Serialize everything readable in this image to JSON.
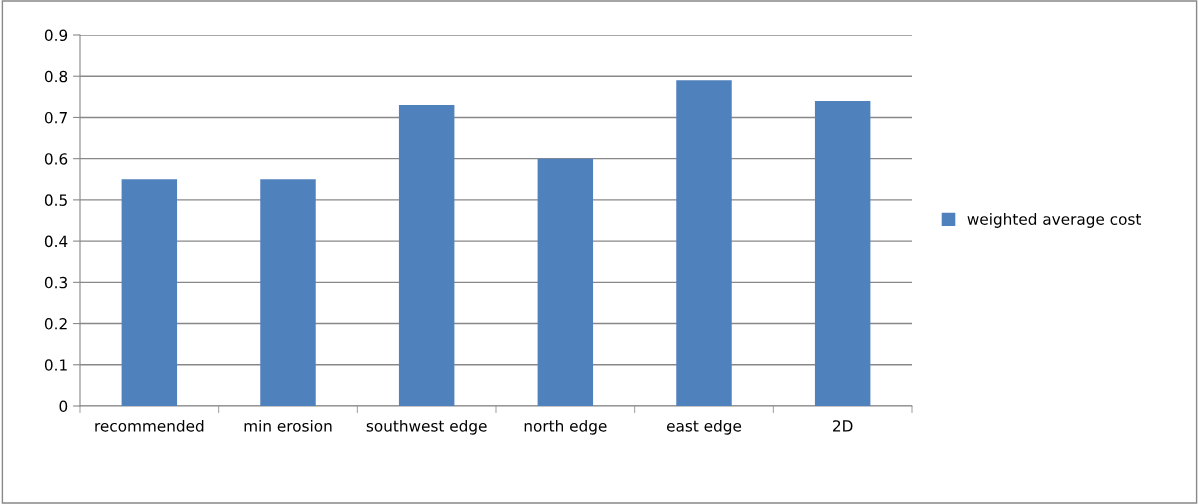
{
  "chart_data": {
    "type": "bar",
    "categories": [
      "recommended",
      "min erosion",
      "southwest edge",
      "north edge",
      "east edge",
      "2D"
    ],
    "series": [
      {
        "name": "weighted average cost",
        "color": "#4f81bd",
        "values": [
          0.55,
          0.55,
          0.73,
          0.6,
          0.79,
          0.74
        ]
      }
    ],
    "ylim": [
      0,
      0.9
    ],
    "yticks": [
      0,
      0.1,
      0.2,
      0.3,
      0.4,
      0.5,
      0.6,
      0.7,
      0.8,
      0.9
    ],
    "grid": "y",
    "legend": "right"
  }
}
